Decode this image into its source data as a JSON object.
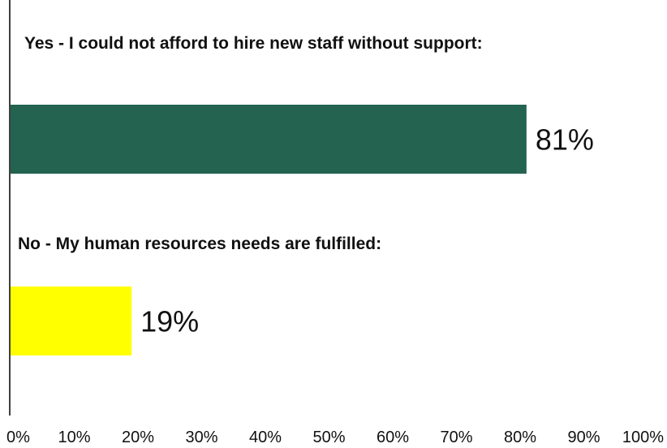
{
  "chart_data": {
    "type": "bar",
    "orientation": "horizontal",
    "categories": [
      "Yes - I could not afford to hire new staff without support:",
      "No - My human resources needs are fulfilled:"
    ],
    "values": [
      81,
      19
    ],
    "value_labels": [
      "81%",
      "19%"
    ],
    "colors": [
      "#236350",
      "#ffff00"
    ],
    "xlim": [
      0,
      100
    ],
    "x_ticks": [
      "0%",
      "10%",
      "20%",
      "30%",
      "40%",
      "50%",
      "60%",
      "70%",
      "80%",
      "90%",
      "100%"
    ],
    "title": "",
    "xlabel": "",
    "ylabel": "",
    "grid": false,
    "legend": "none"
  }
}
